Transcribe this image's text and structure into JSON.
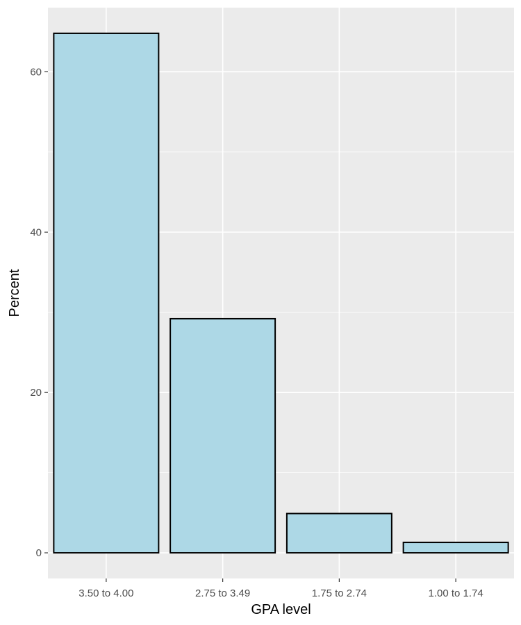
{
  "chart_data": {
    "type": "bar",
    "categories": [
      "3.50 to 4.00",
      "2.75 to 3.49",
      "1.75 to 2.74",
      "1.00 to 1.74"
    ],
    "values": [
      64.8,
      29.2,
      4.9,
      1.3
    ],
    "title": "",
    "xlabel": "GPA level",
    "ylabel": "Percent",
    "ylim": [
      -3.2,
      68
    ],
    "yticks": [
      0,
      20,
      40,
      60
    ],
    "yticks_minor": [
      10,
      30,
      50
    ],
    "grid": true,
    "colors": {
      "panel": "#ebebeb",
      "grid": "#ffffff",
      "bar_fill": "#add8e6",
      "bar_stroke": "#000000"
    }
  }
}
